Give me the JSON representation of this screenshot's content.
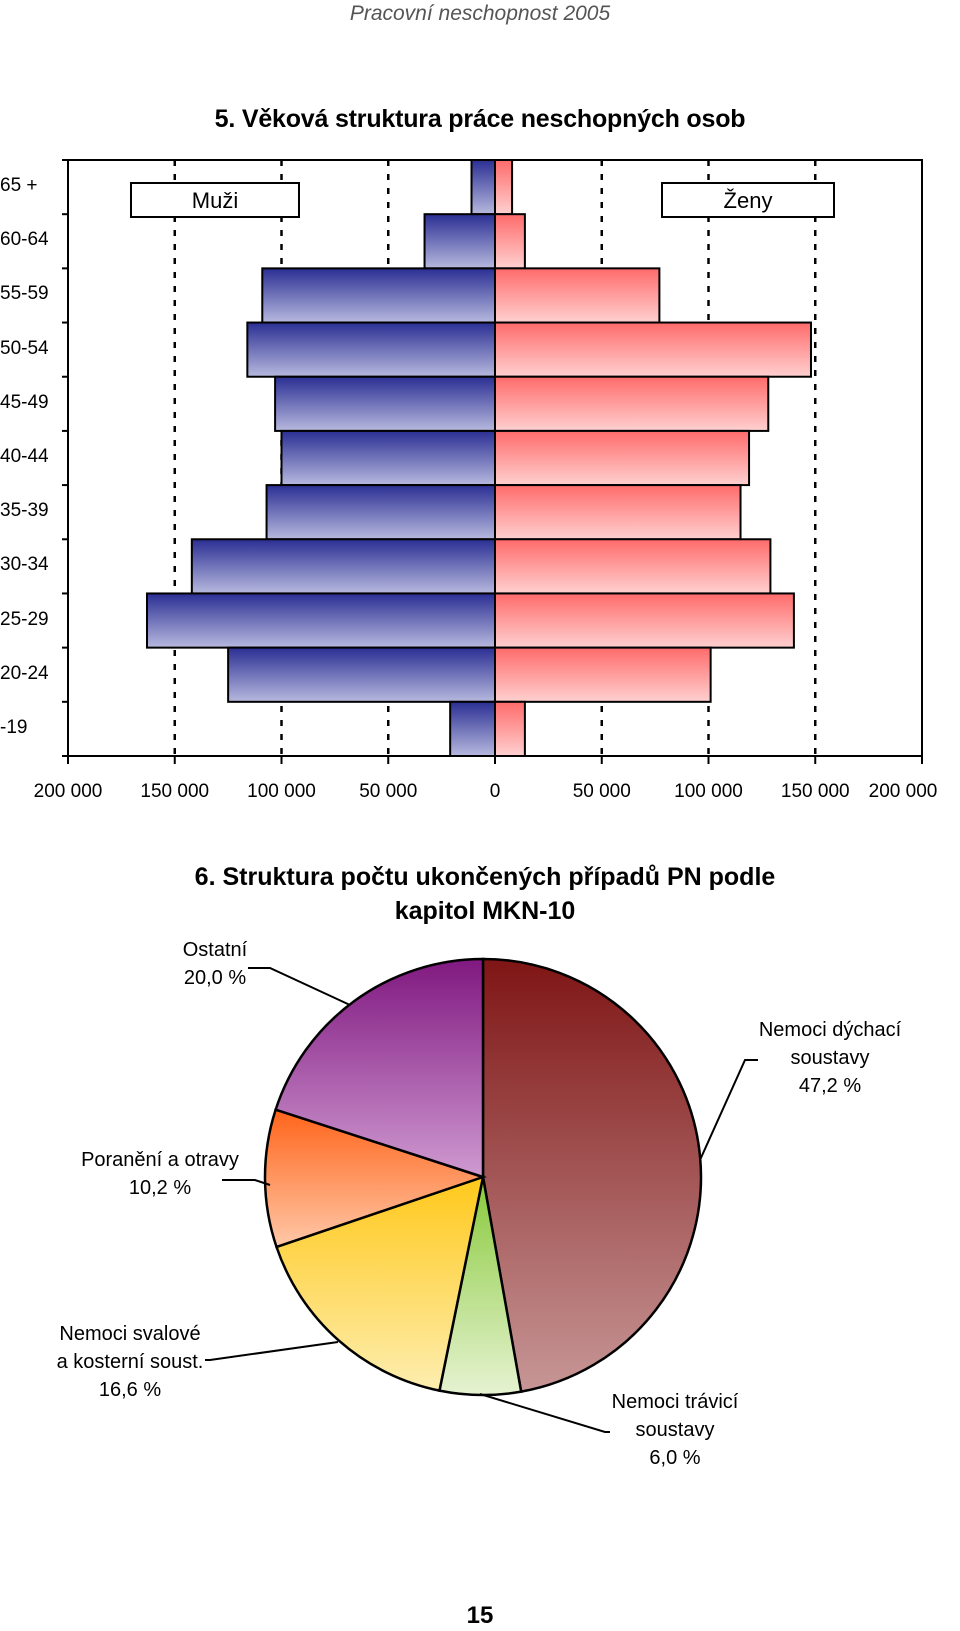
{
  "header": {
    "title": "Pracovní neschopnost 2005"
  },
  "page": {
    "number": "15"
  },
  "chart_data": [
    {
      "type": "bar",
      "title": "5. Věková struktura práce neschopných osob",
      "orientation": "horizontal-pyramid",
      "categories": [
        "65 +",
        "60-64",
        "55-59",
        "50-54",
        "45-49",
        "40-44",
        "35-39",
        "30-34",
        "25-29",
        "20-24",
        "-19"
      ],
      "series": [
        {
          "name": "Muži",
          "values": [
            11000,
            33000,
            109000,
            116000,
            103000,
            100000,
            107000,
            142000,
            163000,
            125000,
            21000
          ],
          "color": "#3a3f9e"
        },
        {
          "name": "Ženy",
          "values": [
            8000,
            14000,
            77000,
            148000,
            128000,
            119000,
            115000,
            129000,
            140000,
            101000,
            14000
          ],
          "color": "#ff7f7f"
        }
      ],
      "xlim": [
        -200000,
        200000
      ],
      "xticks": [
        "200 000",
        "150 000",
        "100 000",
        "50 000",
        "0",
        "50 000",
        "100 000",
        "150 000",
        "200 000"
      ],
      "grid": "vertical dashed",
      "legend": "top"
    },
    {
      "type": "pie",
      "title": "6. Struktura počtu ukončených případů PN podle kapitol MKN-10",
      "slices": [
        {
          "label_lines": [
            "Nemoci dýchací",
            "soustavy"
          ],
          "value_text": "47,2 %",
          "value": 47.2,
          "color": "#8b1a1a"
        },
        {
          "label_lines": [
            "Nemoci trávicí",
            "soustavy"
          ],
          "value_text": "6,0 %",
          "value": 6.0,
          "color": "#8ccf3f"
        },
        {
          "label_lines": [
            "Nemoci svalové",
            "a kosterní soust."
          ],
          "value_text": "16,6 %",
          "value": 16.6,
          "color": "#ffcc1a"
        },
        {
          "label_lines": [
            "Poranění a otravy"
          ],
          "value_text": "10,2 %",
          "value": 10.2,
          "color": "#ff6a1a"
        },
        {
          "label_lines": [
            "Ostatní"
          ],
          "value_text": "20,0 %",
          "value": 20.0,
          "color": "#8a1a8a"
        }
      ]
    }
  ]
}
